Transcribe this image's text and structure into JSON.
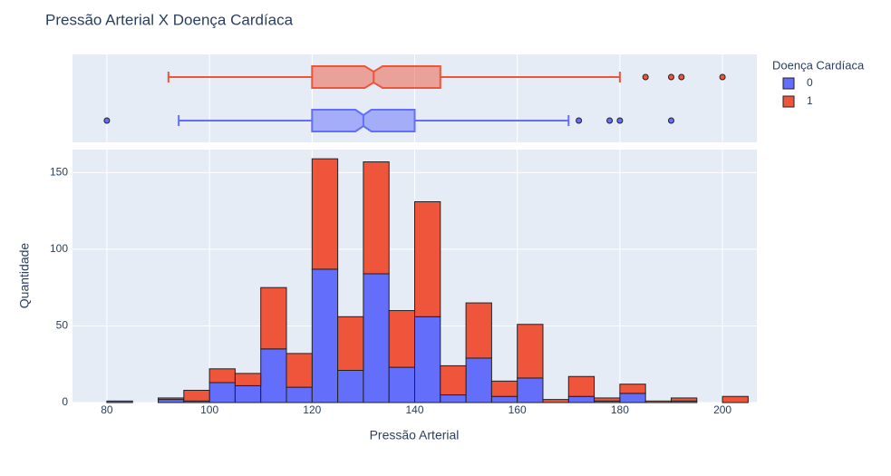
{
  "chart_data": {
    "type": "histogram",
    "title": "Pressão Arterial X Doença Cardíaca",
    "x_label": "Pressão Arterial",
    "y_label": "Quantidade",
    "legend_title": "Doença Cardíaca",
    "bins": [
      80,
      85,
      90,
      95,
      100,
      105,
      110,
      115,
      120,
      125,
      130,
      135,
      140,
      145,
      150,
      155,
      160,
      165,
      170,
      175,
      180,
      185,
      190,
      195,
      200,
      205
    ],
    "series": [
      {
        "name": "0",
        "color": "#636efa",
        "values": [
          1,
          0,
          2,
          1,
          13,
          11,
          35,
          10,
          87,
          21,
          84,
          23,
          56,
          5,
          29,
          4,
          16,
          0,
          4,
          1,
          6,
          0,
          1,
          0,
          0
        ],
        "box": {
          "whisker_low": 94,
          "q1": 120,
          "median": 130,
          "q3": 140,
          "whisker_high": 170,
          "outliers": [
            80,
            172,
            178,
            180,
            190
          ]
        }
      },
      {
        "name": "1",
        "color": "#ef553b",
        "values": [
          0,
          0,
          1,
          7,
          9,
          8,
          40,
          22,
          72,
          35,
          73,
          37,
          75,
          19,
          36,
          10,
          35,
          2,
          13,
          2,
          6,
          1,
          2,
          0,
          4
        ],
        "box": {
          "whisker_low": 92,
          "q1": 120,
          "median": 132,
          "q3": 145,
          "whisker_high": 180,
          "outliers": [
            185,
            190,
            192,
            200
          ]
        }
      }
    ],
    "xlim": [
      73.3,
      206.7
    ],
    "xticks": [
      80,
      100,
      120,
      140,
      160,
      180,
      200
    ],
    "ylim": [
      0,
      165
    ],
    "yticks": [
      0,
      50,
      100,
      150
    ],
    "grid": true,
    "barmode": "stack",
    "marginal": "box"
  }
}
